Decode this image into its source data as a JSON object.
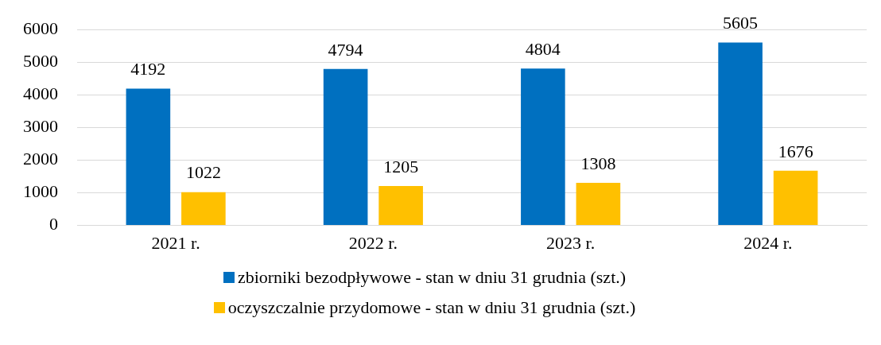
{
  "chart_data": {
    "type": "bar",
    "categories": [
      "2021 r.",
      "2022 r.",
      "2023 r.",
      "2024 r."
    ],
    "series": [
      {
        "name": "zbiorniki bezodpływowe - stan w dniu 31 grudnia (szt.)",
        "color": "#0070c0",
        "values": [
          4192,
          4794,
          4804,
          5605
        ]
      },
      {
        "name": "oczyszczalnie przydomowe - stan w dniu 31 grudnia (szt.)",
        "color": "#ffc000",
        "values": [
          1022,
          1205,
          1308,
          1676
        ]
      }
    ],
    "ylim": [
      0,
      6000
    ],
    "yticks": [
      0,
      1000,
      2000,
      3000,
      4000,
      5000,
      6000
    ],
    "grid": "y",
    "legend": "bottom",
    "data_labels": true
  }
}
